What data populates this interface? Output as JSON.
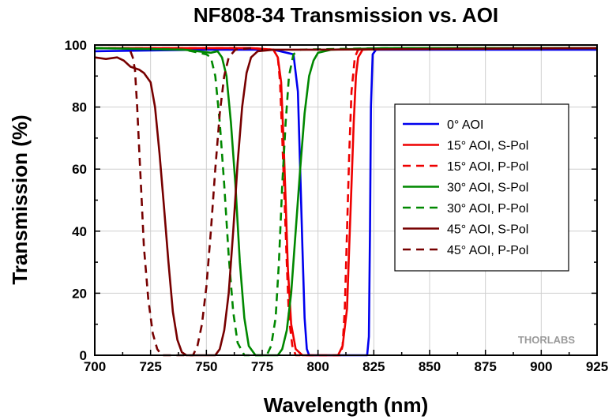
{
  "chart_data": {
    "type": "line",
    "title": "NF808-34 Transmission vs. AOI",
    "xlabel": "Wavelength (nm)",
    "ylabel": "Transmission (%)",
    "xlim": [
      700,
      925
    ],
    "ylim": [
      0,
      100
    ],
    "xticks": [
      700,
      725,
      750,
      775,
      800,
      825,
      850,
      875,
      900,
      925
    ],
    "yticks": [
      0,
      20,
      40,
      60,
      80,
      100
    ],
    "grid": true,
    "legend_position": "right",
    "watermark": "THORLABS",
    "series": [
      {
        "name": "0° AOI",
        "color": "#0000ee",
        "dash": "solid",
        "points": [
          [
            700,
            98
          ],
          [
            750,
            98.5
          ],
          [
            780,
            98.5
          ],
          [
            789,
            97
          ],
          [
            791,
            85
          ],
          [
            792,
            60
          ],
          [
            793,
            35
          ],
          [
            794,
            12
          ],
          [
            795,
            2
          ],
          [
            796,
            0
          ],
          [
            822,
            0
          ],
          [
            822.8,
            6
          ],
          [
            823.3,
            40
          ],
          [
            823.7,
            80
          ],
          [
            824.5,
            97
          ],
          [
            826,
            98.5
          ],
          [
            860,
            98.5
          ],
          [
            900,
            98.5
          ],
          [
            925,
            98.5
          ]
        ]
      },
      {
        "name": "15° AOI, S-Pol",
        "color": "#ee0000",
        "dash": "solid",
        "points": [
          [
            700,
            99
          ],
          [
            770,
            99
          ],
          [
            780,
            98.5
          ],
          [
            782,
            96
          ],
          [
            783.5,
            88
          ],
          [
            784.5,
            70
          ],
          [
            785.5,
            50
          ],
          [
            786.5,
            28
          ],
          [
            788,
            10
          ],
          [
            790,
            2
          ],
          [
            793,
            0
          ],
          [
            809,
            0
          ],
          [
            811,
            3
          ],
          [
            813,
            15
          ],
          [
            814,
            35
          ],
          [
            815,
            55
          ],
          [
            816,
            75
          ],
          [
            817,
            90
          ],
          [
            818,
            96
          ],
          [
            820,
            98.5
          ],
          [
            840,
            99
          ],
          [
            925,
            99
          ]
        ]
      },
      {
        "name": "15° AOI, P-Pol",
        "color": "#ee0000",
        "dash": "dash",
        "points": [
          [
            700,
            99
          ],
          [
            770,
            99
          ],
          [
            780,
            98.5
          ],
          [
            782,
            96
          ],
          [
            783,
            88
          ],
          [
            784,
            70
          ],
          [
            785,
            50
          ],
          [
            786,
            30
          ],
          [
            787,
            12
          ],
          [
            788.5,
            3
          ],
          [
            790,
            0
          ],
          [
            810,
            0
          ],
          [
            811,
            3
          ],
          [
            812,
            15
          ],
          [
            813,
            40
          ],
          [
            814,
            65
          ],
          [
            815,
            85
          ],
          [
            816.5,
            96
          ],
          [
            818,
            98.5
          ],
          [
            840,
            99
          ],
          [
            925,
            99
          ]
        ]
      },
      {
        "name": "30° AOI, S-Pol",
        "color": "#008800",
        "dash": "solid",
        "points": [
          [
            700,
            99
          ],
          [
            740,
            98.5
          ],
          [
            752,
            97.5
          ],
          [
            755,
            98
          ],
          [
            757,
            96
          ],
          [
            759,
            90
          ],
          [
            761,
            75
          ],
          [
            763,
            55
          ],
          [
            765,
            30
          ],
          [
            767,
            12
          ],
          [
            769,
            3
          ],
          [
            772,
            0
          ],
          [
            782,
            0
          ],
          [
            784,
            2
          ],
          [
            786,
            8
          ],
          [
            788,
            20
          ],
          [
            790,
            40
          ],
          [
            792,
            60
          ],
          [
            794,
            78
          ],
          [
            796,
            90
          ],
          [
            798,
            95
          ],
          [
            800,
            97.5
          ],
          [
            806,
            98.5
          ],
          [
            830,
            99
          ],
          [
            925,
            99
          ]
        ]
      },
      {
        "name": "30° AOI, P-Pol",
        "color": "#008800",
        "dash": "dash",
        "points": [
          [
            700,
            99
          ],
          [
            740,
            98.5
          ],
          [
            750,
            97
          ],
          [
            752,
            96
          ],
          [
            754,
            90
          ],
          [
            756,
            75
          ],
          [
            758,
            55
          ],
          [
            760,
            32
          ],
          [
            762,
            14
          ],
          [
            764,
            4
          ],
          [
            767,
            0
          ],
          [
            777,
            0
          ],
          [
            779,
            3
          ],
          [
            781,
            12
          ],
          [
            782.5,
            30
          ],
          [
            784,
            55
          ],
          [
            785.5,
            75
          ],
          [
            787,
            90
          ],
          [
            789,
            97
          ],
          [
            792,
            98.5
          ],
          [
            830,
            99
          ],
          [
            925,
            99
          ]
        ]
      },
      {
        "name": "45° AOI, S-Pol",
        "color": "#770000",
        "dash": "solid",
        "points": [
          [
            700,
            96
          ],
          [
            705,
            95.5
          ],
          [
            710,
            96
          ],
          [
            713,
            95
          ],
          [
            716,
            93
          ],
          [
            720,
            92
          ],
          [
            722,
            91
          ],
          [
            725,
            88
          ],
          [
            727,
            80
          ],
          [
            729,
            65
          ],
          [
            731,
            48
          ],
          [
            733,
            30
          ],
          [
            735,
            14
          ],
          [
            737,
            5
          ],
          [
            739,
            1
          ],
          [
            741,
            0
          ],
          [
            754,
            0
          ],
          [
            756,
            2
          ],
          [
            758,
            8
          ],
          [
            760,
            20
          ],
          [
            762,
            40
          ],
          [
            764,
            62
          ],
          [
            766,
            80
          ],
          [
            768,
            91
          ],
          [
            770,
            96
          ],
          [
            773,
            98
          ],
          [
            780,
            98.5
          ],
          [
            800,
            98.5
          ],
          [
            925,
            99
          ]
        ]
      },
      {
        "name": "45° AOI, P-Pol",
        "color": "#770000",
        "dash": "dash",
        "points": [
          [
            716,
            98
          ],
          [
            717,
            96
          ],
          [
            718,
            92
          ],
          [
            719,
            80
          ],
          [
            720,
            65
          ],
          [
            721,
            50
          ],
          [
            722,
            35
          ],
          [
            724,
            18
          ],
          [
            726,
            7
          ],
          [
            728,
            2
          ],
          [
            730,
            0
          ],
          [
            744,
            0
          ],
          [
            746,
            3
          ],
          [
            748,
            10
          ],
          [
            750,
            22
          ],
          [
            752,
            40
          ],
          [
            754,
            60
          ],
          [
            756,
            78
          ],
          [
            758,
            90
          ],
          [
            760,
            96
          ],
          [
            763,
            98.5
          ],
          [
            770,
            99
          ]
        ]
      }
    ]
  }
}
